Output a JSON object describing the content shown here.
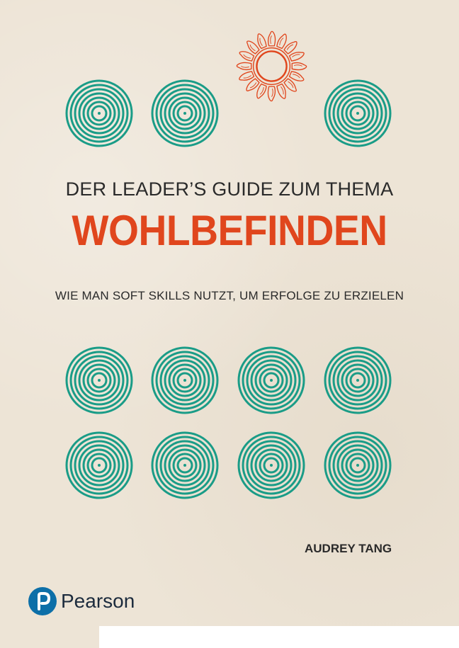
{
  "cover": {
    "subtitle_top": "DER LEADER’S GUIDE ZUM THEMA",
    "title": "WOHLBEFINDEN",
    "tagline": "WIE MAN SOFT SKILLS NUTZT, UM ERFOLGE ZU ERZIELEN",
    "author": "AUDREY TANG"
  },
  "publisher": {
    "logo_icon": "pearson-p-logo-icon",
    "name": "Pearson"
  },
  "colors": {
    "background": "#ede4d6",
    "accent": "#e0461d",
    "rings": "#1a9c87",
    "text": "#2a2a2a",
    "publisher_blue": "#0d6fa8"
  }
}
